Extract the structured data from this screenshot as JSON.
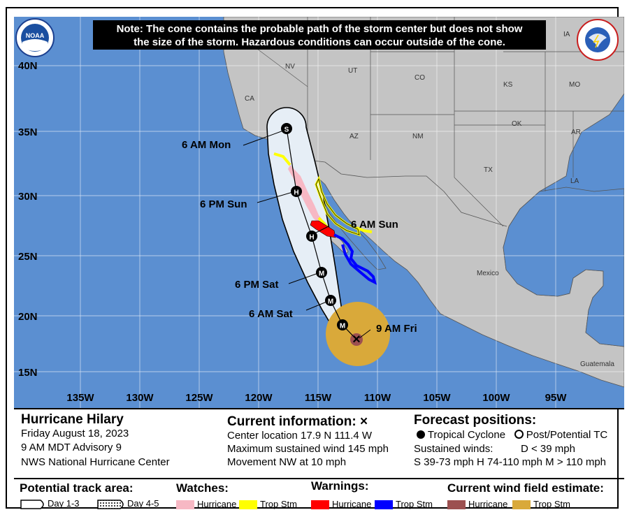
{
  "note": {
    "line1": "Note: The cone contains the probable path of the storm center but does not show",
    "line2": "the size of the storm. Hazardous conditions can occur outside of the cone."
  },
  "logos": {
    "noaa": "NOAA",
    "nws_ring": "NATIONAL WEATHER SERVICE"
  },
  "lat_labels": [
    "40N",
    "35N",
    "30N",
    "25N",
    "20N",
    "15N"
  ],
  "lon_labels": [
    "135W",
    "130W",
    "125W",
    "120W",
    "115W",
    "110W",
    "105W",
    "100W",
    "95W"
  ],
  "region_labels": {
    "ca": "CA",
    "nv": "NV",
    "ut": "UT",
    "co": "CO",
    "ia": "IA",
    "ks": "KS",
    "mo": "MO",
    "az": "AZ",
    "nm": "NM",
    "ok": "OK",
    "ar": "AR",
    "tx": "TX",
    "la": "LA",
    "mexico": "Mexico",
    "guatemala": "Guatemala"
  },
  "forecast_points": [
    {
      "time": "9 AM Fri",
      "symbol": "×"
    },
    {
      "time": "",
      "symbol": "M"
    },
    {
      "time": "6 AM Sat",
      "symbol": "M"
    },
    {
      "time": "6 PM Sat",
      "symbol": "M"
    },
    {
      "time": "6 AM Sun",
      "symbol": "H"
    },
    {
      "time": "6 PM Sun",
      "symbol": "H"
    },
    {
      "time": "6 AM Mon",
      "symbol": "S"
    }
  ],
  "storm": {
    "name": "Hurricane Hilary",
    "date": "Friday August 18, 2023",
    "advisory": "9 AM MDT Advisory 9",
    "center": "NWS National Hurricane Center"
  },
  "current": {
    "title": "Current information:",
    "marker": "×",
    "location": "Center location 17.9 N 111.4 W",
    "wind": "Maximum sustained wind 145 mph",
    "movement": "Movement NW at 10 mph"
  },
  "forecast": {
    "title": "Forecast positions:",
    "tc": "Tropical Cyclone",
    "post": "Post/Potential TC",
    "winds_label": "Sustained winds:",
    "d": "D < 39 mph",
    "shm": "S 39-73 mph  H 74-110 mph  M > 110 mph"
  },
  "legend": {
    "track_title": "Potential track area:",
    "day13": "Day 1-3",
    "day45": "Day 4-5",
    "watches_title": "Watches:",
    "warnings_title": "Warnings:",
    "wind_title": "Current wind field estimate:",
    "hurricane": "Hurricane",
    "trop_stm": "Trop Stm"
  },
  "colors": {
    "ocean": "#5b8fd1",
    "land": "#c4c4c4",
    "cone": "#e6eef6",
    "hurricane_watch": "#f7b8c4",
    "ts_watch": "#ffff00",
    "hurricane_warning": "#ff0000",
    "ts_warning": "#0000ff",
    "hurricane_wind": "#9c5050",
    "ts_wind": "#d9a93a"
  }
}
